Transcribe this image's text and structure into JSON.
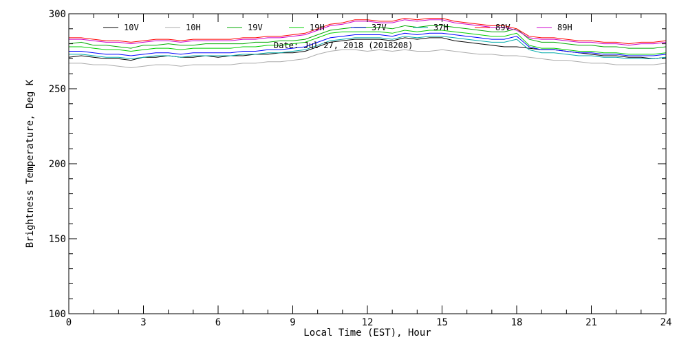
{
  "chart_data": {
    "type": "line",
    "title": "",
    "xlabel": "Local Time (EST), Hour",
    "ylabel": "Brightness Temperature, Deg K",
    "xlim": [
      0,
      24
    ],
    "ylim": [
      100,
      300
    ],
    "xticks": [
      0,
      3,
      6,
      9,
      12,
      15,
      18,
      21,
      24
    ],
    "yticks": [
      100,
      150,
      200,
      250,
      300
    ],
    "grid": false,
    "legend_placement": "top, inside plot, single row",
    "annotation": "Date: Jul 27, 2018 (2018208)",
    "x": [
      0,
      0.5,
      1,
      1.5,
      2,
      2.5,
      3,
      3.5,
      4,
      4.5,
      5,
      5.5,
      6,
      6.5,
      7,
      7.5,
      8,
      8.5,
      9,
      9.5,
      10,
      10.5,
      11,
      11.5,
      12,
      12.5,
      13,
      13.5,
      14,
      14.5,
      15,
      15.5,
      16,
      16.5,
      17,
      17.5,
      18,
      18.5,
      19,
      19.5,
      20,
      20.5,
      21,
      21.5,
      22,
      22.5,
      23,
      23.5,
      24
    ],
    "series": [
      {
        "name": "10V",
        "color": "#000000",
        "values": [
          271,
          272,
          271,
          270,
          270,
          269,
          271,
          271,
          272,
          271,
          271,
          272,
          271,
          272,
          272,
          273,
          273,
          274,
          274,
          275,
          278,
          281,
          282,
          283,
          283,
          283,
          282,
          284,
          283,
          284,
          284,
          282,
          281,
          280,
          279,
          278,
          278,
          277,
          276,
          276,
          275,
          274,
          273,
          272,
          272,
          271,
          271,
          270,
          271
        ]
      },
      {
        "name": "10H",
        "color": "#aaaaaa",
        "values": [
          267,
          267,
          266,
          266,
          265,
          264,
          265,
          266,
          266,
          265,
          266,
          266,
          266,
          266,
          267,
          267,
          268,
          268,
          269,
          270,
          273,
          275,
          276,
          276,
          275,
          276,
          275,
          276,
          275,
          275,
          276,
          275,
          274,
          273,
          273,
          272,
          272,
          271,
          270,
          269,
          269,
          268,
          267,
          267,
          266,
          266,
          266,
          266,
          267
        ]
      },
      {
        "name": "19V",
        "color": "#00aa00",
        "values": [
          280,
          281,
          279,
          279,
          278,
          277,
          279,
          279,
          280,
          279,
          279,
          280,
          280,
          280,
          280,
          281,
          281,
          282,
          282,
          283,
          286,
          289,
          290,
          291,
          291,
          291,
          290,
          292,
          291,
          292,
          292,
          291,
          290,
          289,
          288,
          288,
          290,
          283,
          281,
          281,
          280,
          279,
          279,
          278,
          278,
          277,
          277,
          277,
          278
        ]
      },
      {
        "name": "19H",
        "color": "#00d000",
        "values": [
          278,
          278,
          277,
          276,
          276,
          275,
          276,
          277,
          277,
          276,
          277,
          277,
          277,
          277,
          278,
          278,
          279,
          279,
          280,
          281,
          284,
          287,
          288,
          288,
          288,
          288,
          287,
          289,
          288,
          289,
          289,
          288,
          287,
          286,
          285,
          285,
          287,
          279,
          277,
          277,
          276,
          275,
          275,
          274,
          274,
          273,
          273,
          273,
          274
        ]
      },
      {
        "name": "37V",
        "color": "#0000ff",
        "values": [
          275,
          275,
          274,
          273,
          273,
          272,
          273,
          274,
          274,
          273,
          274,
          274,
          274,
          274,
          275,
          275,
          276,
          276,
          277,
          278,
          281,
          284,
          285,
          286,
          286,
          286,
          285,
          287,
          286,
          287,
          287,
          286,
          285,
          284,
          283,
          283,
          285,
          278,
          276,
          276,
          275,
          274,
          274,
          273,
          273,
          272,
          272,
          272,
          273
        ]
      },
      {
        "name": "37H",
        "color": "#00aaaa",
        "values": [
          273,
          273,
          272,
          271,
          271,
          270,
          271,
          272,
          272,
          271,
          272,
          272,
          272,
          272,
          273,
          273,
          274,
          274,
          275,
          276,
          279,
          282,
          283,
          284,
          284,
          284,
          283,
          285,
          284,
          285,
          285,
          284,
          283,
          282,
          281,
          281,
          283,
          276,
          274,
          274,
          273,
          272,
          272,
          271,
          271,
          270,
          270,
          270,
          271
        ]
      },
      {
        "name": "89V",
        "color": "#ff0000",
        "values": [
          284,
          284,
          283,
          282,
          282,
          281,
          282,
          283,
          283,
          282,
          283,
          283,
          283,
          283,
          284,
          284,
          285,
          285,
          286,
          287,
          290,
          293,
          294,
          296,
          296,
          295,
          295,
          297,
          296,
          297,
          297,
          295,
          294,
          293,
          292,
          292,
          290,
          285,
          284,
          284,
          283,
          282,
          282,
          281,
          281,
          280,
          281,
          281,
          282
        ]
      },
      {
        "name": "89H",
        "color": "#cc00cc",
        "values": [
          283,
          283,
          282,
          281,
          281,
          280,
          281,
          282,
          282,
          281,
          282,
          282,
          282,
          282,
          283,
          283,
          284,
          284,
          285,
          286,
          289,
          292,
          293,
          295,
          295,
          294,
          294,
          296,
          295,
          296,
          296,
          294,
          293,
          292,
          291,
          291,
          289,
          284,
          283,
          283,
          282,
          281,
          281,
          280,
          280,
          279,
          280,
          280,
          281
        ]
      }
    ]
  }
}
